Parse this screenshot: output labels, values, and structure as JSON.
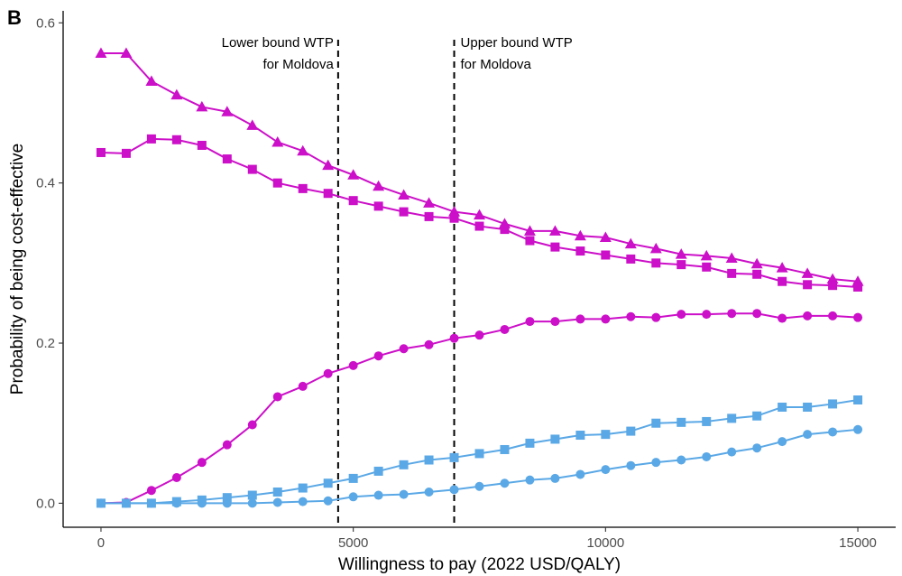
{
  "panel_label": "B",
  "chart_data": {
    "type": "line",
    "xlabel": "Willingness to pay (2022 USD/QALY)",
    "ylabel": "Probability of being cost-effective",
    "xlim": [
      -750,
      15750
    ],
    "ylim": [
      -0.03,
      0.615
    ],
    "xticks": [
      0,
      5000,
      10000,
      15000
    ],
    "xtick_labels": [
      "0",
      "5000",
      "10000",
      "15000"
    ],
    "yticks": [
      0.0,
      0.2,
      0.4,
      0.6
    ],
    "ytick_labels": [
      "0.0",
      "0.2",
      "0.4",
      "0.6"
    ],
    "grid": false,
    "legend": "none",
    "x": [
      0,
      500,
      1000,
      1500,
      2000,
      2500,
      3000,
      3500,
      4000,
      4500,
      5000,
      5500,
      6000,
      6500,
      7000,
      7500,
      8000,
      8500,
      9000,
      9500,
      10000,
      10500,
      11000,
      11500,
      12000,
      12500,
      13000,
      13500,
      14000,
      14500,
      15000
    ],
    "series": [
      {
        "marker": "triangle",
        "color": "#cc0fc8",
        "values": [
          0.562,
          0.562,
          0.527,
          0.51,
          0.495,
          0.489,
          0.472,
          0.451,
          0.44,
          0.422,
          0.41,
          0.396,
          0.385,
          0.375,
          0.364,
          0.36,
          0.349,
          0.34,
          0.34,
          0.334,
          0.332,
          0.324,
          0.318,
          0.311,
          0.309,
          0.306,
          0.299,
          0.294,
          0.287,
          0.28,
          0.277
        ]
      },
      {
        "marker": "square",
        "color": "#cc0fc8",
        "values": [
          0.438,
          0.437,
          0.455,
          0.454,
          0.447,
          0.43,
          0.417,
          0.4,
          0.393,
          0.387,
          0.378,
          0.371,
          0.364,
          0.358,
          0.356,
          0.346,
          0.342,
          0.328,
          0.32,
          0.315,
          0.31,
          0.305,
          0.3,
          0.298,
          0.295,
          0.287,
          0.286,
          0.277,
          0.273,
          0.272,
          0.27
        ]
      },
      {
        "marker": "circle",
        "color": "#cc0fc8",
        "values": [
          0.0,
          0.001,
          0.016,
          0.032,
          0.051,
          0.073,
          0.098,
          0.133,
          0.146,
          0.162,
          0.172,
          0.184,
          0.193,
          0.198,
          0.206,
          0.21,
          0.217,
          0.227,
          0.227,
          0.23,
          0.23,
          0.233,
          0.232,
          0.236,
          0.236,
          0.237,
          0.237,
          0.231,
          0.234,
          0.234,
          0.232
        ]
      },
      {
        "marker": "square",
        "color": "#5aa8e6",
        "values": [
          0.0,
          0.0,
          0.0,
          0.002,
          0.004,
          0.007,
          0.01,
          0.014,
          0.019,
          0.025,
          0.031,
          0.04,
          0.048,
          0.054,
          0.057,
          0.062,
          0.067,
          0.075,
          0.08,
          0.085,
          0.086,
          0.09,
          0.1,
          0.101,
          0.102,
          0.106,
          0.109,
          0.12,
          0.12,
          0.124,
          0.129
        ]
      },
      {
        "marker": "circle",
        "color": "#5aa8e6",
        "values": [
          0.0,
          0.0,
          0.0,
          0.0,
          0.0,
          0.0,
          0.0,
          0.001,
          0.002,
          0.003,
          0.008,
          0.01,
          0.011,
          0.014,
          0.017,
          0.021,
          0.025,
          0.029,
          0.031,
          0.036,
          0.042,
          0.047,
          0.051,
          0.054,
          0.058,
          0.064,
          0.069,
          0.077,
          0.086,
          0.089,
          0.092
        ]
      }
    ],
    "annotations": [
      {
        "x": 4700,
        "line_style": "dashed",
        "label_lines": [
          "Lower bound WTP",
          "for Moldova"
        ],
        "label_side": "left"
      },
      {
        "x": 7000,
        "line_style": "dashed",
        "label_lines": [
          "Upper bound WTP",
          "for Moldova"
        ],
        "label_side": "right"
      }
    ]
  }
}
